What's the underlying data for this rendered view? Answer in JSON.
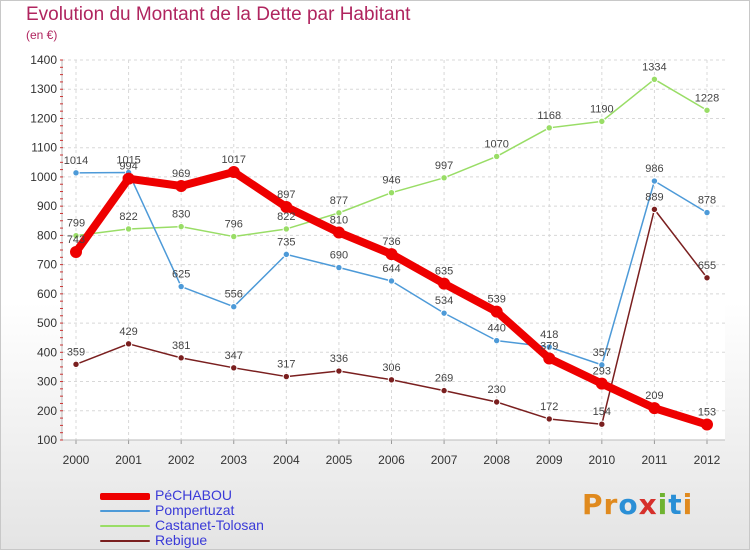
{
  "header": {
    "title": "Evolution du Montant de la Dette par Habitant",
    "unit": "(en €)"
  },
  "logo": {
    "letters": [
      "P",
      "r",
      "o",
      "x",
      "i",
      "t",
      "i"
    ],
    "colors": [
      "#e08a1e",
      "#e08a1e",
      "#2a8fd6",
      "#d6302b",
      "#6fb330",
      "#2a8fd6",
      "#e08a1e"
    ]
  },
  "chart_data": {
    "type": "line",
    "title": "Evolution du Montant de la Dette par Habitant",
    "ylabel": "(en €)",
    "xlabel": "",
    "x": [
      "2000",
      "2001",
      "2002",
      "2003",
      "2004",
      "2005",
      "2006",
      "2007",
      "2008",
      "2009",
      "2010",
      "2011",
      "2012"
    ],
    "yticks": [
      100,
      200,
      300,
      400,
      500,
      600,
      700,
      800,
      900,
      1000,
      1100,
      1200,
      1300,
      1400
    ],
    "ylim": [
      100,
      1400
    ],
    "grid": true,
    "legend_position": "bottom-left",
    "series": [
      {
        "name": "Rebigue",
        "color": "#7a1f1f",
        "values": [
          359,
          429,
          381,
          347,
          317,
          336,
          306,
          269,
          230,
          172,
          154,
          889,
          655
        ]
      },
      {
        "name": "Castanet-Tolosan",
        "color": "#99dd66",
        "values": [
          799,
          822,
          830,
          796,
          822,
          877,
          946,
          997,
          1070,
          1168,
          1190,
          1334,
          1228
        ]
      },
      {
        "name": "Pompertuzat",
        "color": "#4d9ad8",
        "values": [
          1014,
          1015,
          625,
          556,
          735,
          690,
          644,
          534,
          440,
          418,
          357,
          986,
          878
        ]
      },
      {
        "name": "PéCHABOU",
        "color": "#ee0000",
        "values": [
          743,
          994,
          969,
          1017,
          897,
          810,
          736,
          635,
          539,
          379,
          293,
          209,
          153
        ]
      }
    ],
    "legend_order": [
      "PéCHABOU",
      "Pompertuzat",
      "Castanet-Tolosan",
      "Rebigue"
    ]
  }
}
